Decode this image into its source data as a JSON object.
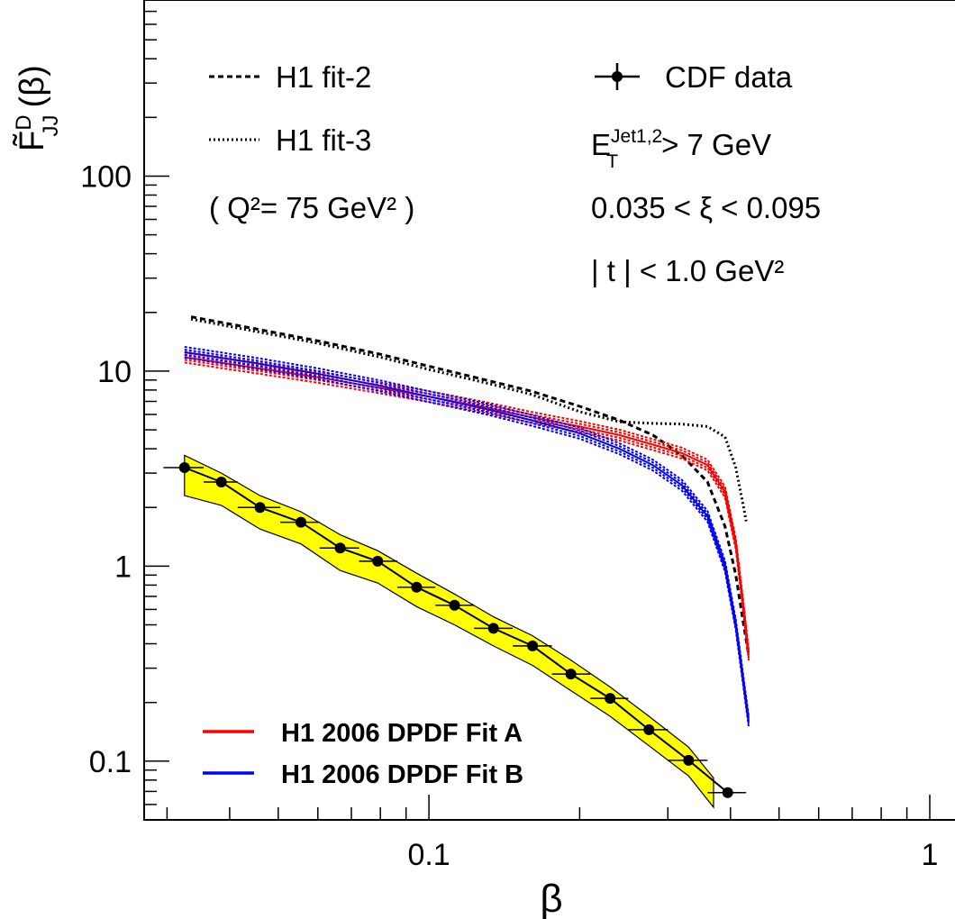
{
  "chart_data": {
    "type": "line",
    "xscale": "log",
    "yscale": "log",
    "xlim": [
      0.027,
      1.0
    ],
    "ylim": [
      0.05,
      800
    ],
    "xlabel": "β",
    "ylabel": "F̃",
    "ylabel_super": "D",
    "ylabel_sub": "JJ",
    "ylabel_arg": "(β)",
    "x_tick_labels": [
      {
        "value": 0.1,
        "label": "0.1"
      },
      {
        "value": 1.0,
        "label": "1"
      }
    ],
    "y_tick_labels": [
      {
        "value": 0.1,
        "label": "0.1"
      },
      {
        "value": 1,
        "label": "1"
      },
      {
        "value": 10,
        "label": "10"
      },
      {
        "value": 100,
        "label": "100"
      }
    ],
    "cdf_data": {
      "name": "CDF data",
      "points": [
        {
          "x": 0.0325,
          "y": 3.2,
          "xlo": 0.0295,
          "xhi": 0.0355
        },
        {
          "x": 0.0385,
          "y": 2.7,
          "xlo": 0.0355,
          "xhi": 0.0415
        },
        {
          "x": 0.046,
          "y": 2.0,
          "xlo": 0.0415,
          "xhi": 0.0505
        },
        {
          "x": 0.0555,
          "y": 1.68,
          "xlo": 0.0505,
          "xhi": 0.0605
        },
        {
          "x": 0.0665,
          "y": 1.24,
          "xlo": 0.0605,
          "xhi": 0.0725
        },
        {
          "x": 0.079,
          "y": 1.06,
          "xlo": 0.0725,
          "xhi": 0.0865
        },
        {
          "x": 0.0945,
          "y": 0.78,
          "xlo": 0.0865,
          "xhi": 0.103
        },
        {
          "x": 0.1125,
          "y": 0.63,
          "xlo": 0.103,
          "xhi": 0.123
        },
        {
          "x": 0.1345,
          "y": 0.48,
          "xlo": 0.123,
          "xhi": 0.147
        },
        {
          "x": 0.161,
          "y": 0.39,
          "xlo": 0.147,
          "xhi": 0.176
        },
        {
          "x": 0.192,
          "y": 0.28,
          "xlo": 0.176,
          "xhi": 0.21
        },
        {
          "x": 0.23,
          "y": 0.21,
          "xlo": 0.21,
          "xhi": 0.25
        },
        {
          "x": 0.275,
          "y": 0.145,
          "xlo": 0.25,
          "xhi": 0.3
        },
        {
          "x": 0.33,
          "y": 0.101,
          "xlo": 0.3,
          "xhi": 0.36
        },
        {
          "x": 0.395,
          "y": 0.069,
          "xlo": 0.36,
          "xhi": 0.43
        }
      ]
    },
    "yellow_band": {
      "x": [
        0.0325,
        0.0385,
        0.046,
        0.0555,
        0.0665,
        0.079,
        0.0945,
        0.1125,
        0.1345,
        0.161,
        0.192,
        0.23,
        0.275,
        0.33,
        0.37
      ],
      "upper": [
        3.7,
        3.0,
        2.3,
        1.9,
        1.45,
        1.2,
        0.92,
        0.72,
        0.55,
        0.44,
        0.33,
        0.24,
        0.17,
        0.118,
        0.082
      ],
      "lower": [
        2.3,
        2.05,
        1.55,
        1.3,
        0.95,
        0.82,
        0.62,
        0.5,
        0.39,
        0.31,
        0.23,
        0.17,
        0.12,
        0.084,
        0.058
      ]
    },
    "series": [
      {
        "name": "H1 fit-2",
        "style": "dashed",
        "color": "#000000",
        "x": [
          0.0335,
          0.045,
          0.06,
          0.08,
          0.1,
          0.13,
          0.16,
          0.2,
          0.24,
          0.28,
          0.32,
          0.36,
          0.39,
          0.41,
          0.425,
          0.435
        ],
        "y": [
          19,
          16.5,
          14.3,
          12.2,
          10.6,
          9.0,
          7.9,
          6.6,
          5.6,
          4.7,
          3.7,
          2.7,
          1.6,
          0.9,
          0.5,
          0.35
        ]
      },
      {
        "name": "H1 fit-3",
        "style": "dotted",
        "color": "#000000",
        "x": [
          0.0335,
          0.045,
          0.06,
          0.08,
          0.1,
          0.13,
          0.16,
          0.2,
          0.24,
          0.28,
          0.32,
          0.36,
          0.39,
          0.41,
          0.425,
          0.43
        ],
        "y": [
          18.5,
          16.0,
          13.9,
          11.8,
          10.2,
          8.7,
          7.6,
          6.2,
          5.5,
          5.4,
          5.35,
          5.2,
          4.6,
          3.2,
          2.0,
          1.7
        ]
      },
      {
        "name": "H1 2006 DPDF Fit A",
        "style": "solid",
        "color": "#ff0000",
        "x": [
          0.0325,
          0.045,
          0.06,
          0.08,
          0.1,
          0.13,
          0.16,
          0.2,
          0.24,
          0.28,
          0.32,
          0.36,
          0.39,
          0.41,
          0.425,
          0.435
        ],
        "y": [
          11.8,
          10.4,
          9.3,
          8.2,
          7.4,
          6.5,
          5.8,
          5.2,
          4.7,
          4.2,
          3.8,
          3.3,
          2.4,
          1.3,
          0.6,
          0.35
        ]
      },
      {
        "name": "H1 2006 DPDF Fit B",
        "style": "solid",
        "color": "#0000ff",
        "x": [
          0.0325,
          0.045,
          0.06,
          0.08,
          0.1,
          0.13,
          0.16,
          0.2,
          0.24,
          0.28,
          0.32,
          0.36,
          0.39,
          0.41,
          0.425,
          0.435
        ],
        "y": [
          12.5,
          11.0,
          9.7,
          8.4,
          7.4,
          6.4,
          5.6,
          4.8,
          4.0,
          3.3,
          2.6,
          1.8,
          1.0,
          0.5,
          0.25,
          0.16
        ]
      }
    ],
    "legend_left": [
      {
        "label": "H1 fit-2",
        "style": "dashed"
      },
      {
        "label": "H1 fit-3",
        "style": "dotted"
      }
    ],
    "q2_note": "( Q²= 75 GeV² )",
    "legend_right_data": "CDF data",
    "cuts": {
      "et_base": "E",
      "et_sup": "Jet1,2",
      "et_sub": "T",
      "et_rest": "> 7 GeV",
      "xi_range": "0.035 < ξ < 0.095",
      "t_range": "| t | < 1.0 GeV²"
    },
    "legend_bottom": [
      {
        "label": "H1 2006 DPDF Fit A",
        "color": "#ff0000"
      },
      {
        "label": "H1 2006 DPDF Fit B",
        "color": "#0000ff"
      }
    ]
  }
}
